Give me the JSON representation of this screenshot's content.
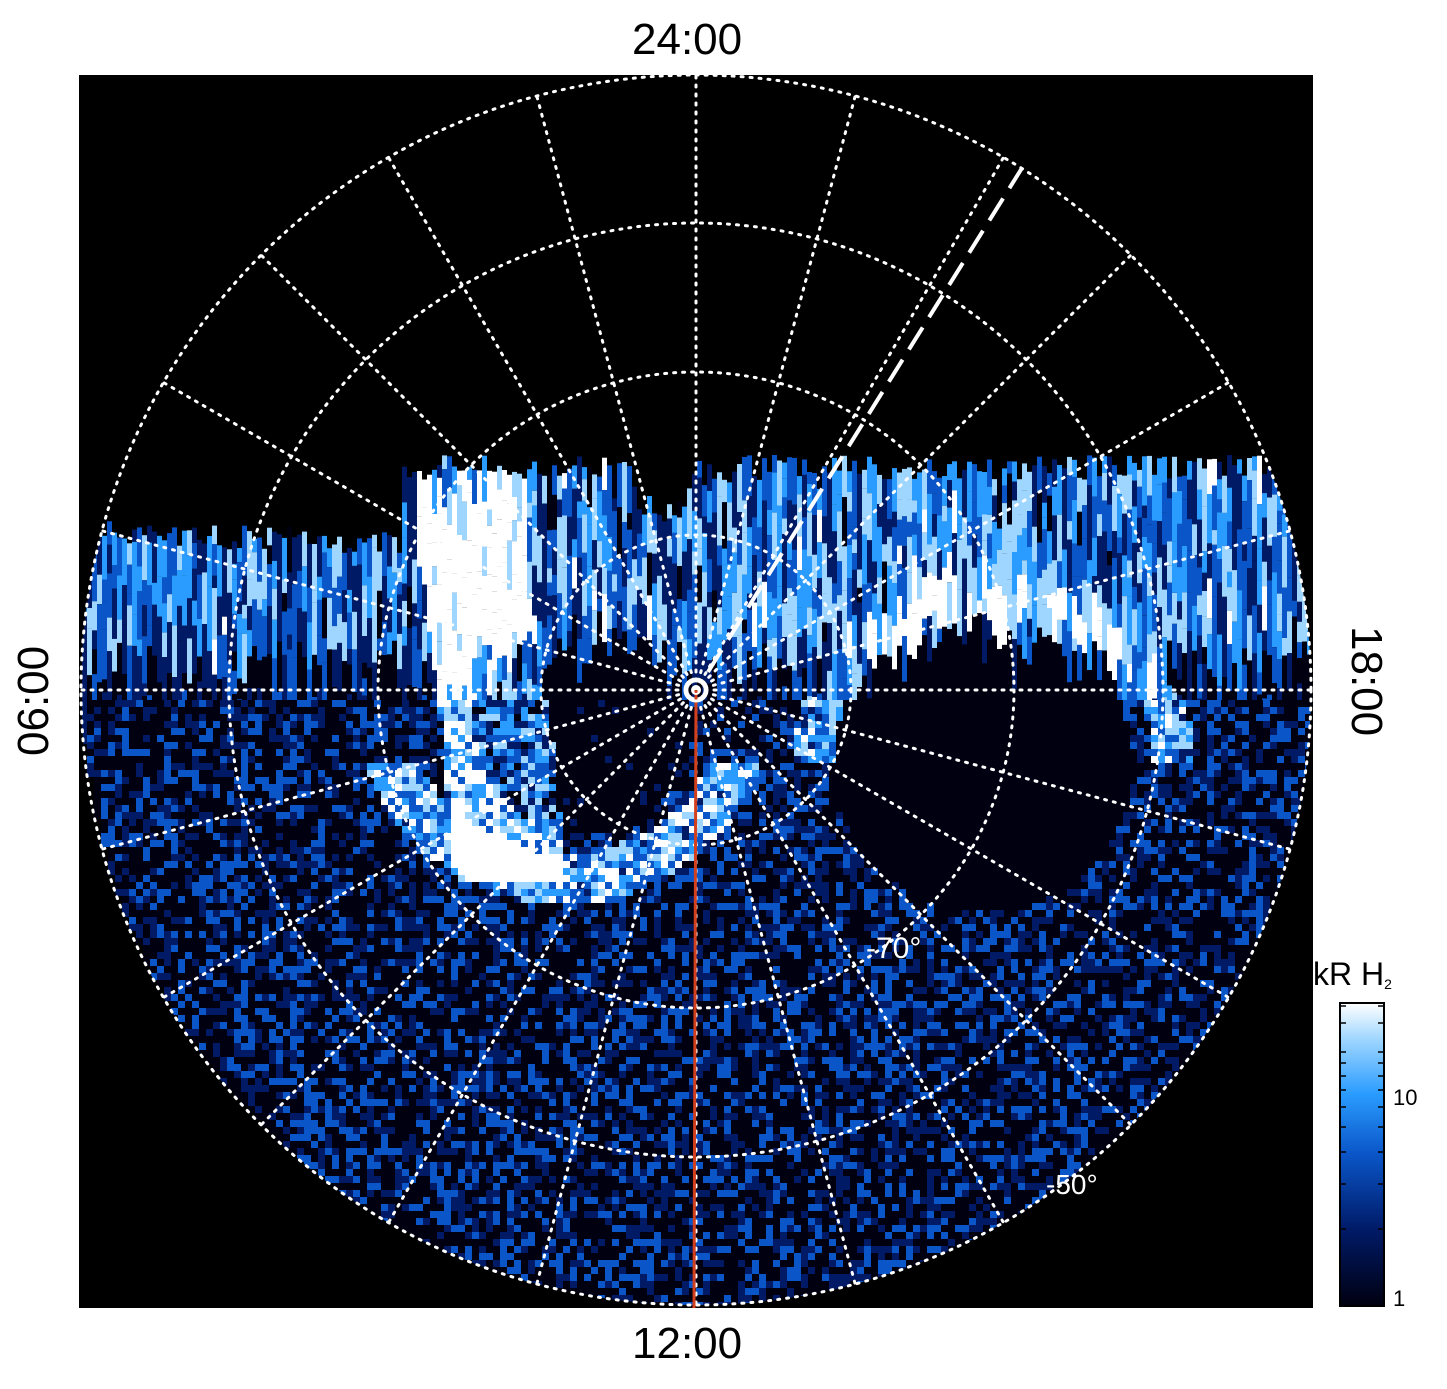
{
  "figure": {
    "local_time_labels": {
      "top": "24:00",
      "bottom": "12:00",
      "left": "06:00",
      "right": "18:00"
    },
    "latitude_labels": [
      "-70°",
      "-50°"
    ],
    "colorbar": {
      "title": "kR H",
      "title_subscript": "2",
      "ticks": [
        "10",
        "1"
      ],
      "colors": [
        "#000010",
        "#001a66",
        "#0a55c8",
        "#2a9cff",
        "#9fd6ff",
        "#ffffff"
      ]
    },
    "colors": {
      "background": "#000000",
      "grid": "#ffffff",
      "meridian_line": "#d2401e"
    }
  }
}
